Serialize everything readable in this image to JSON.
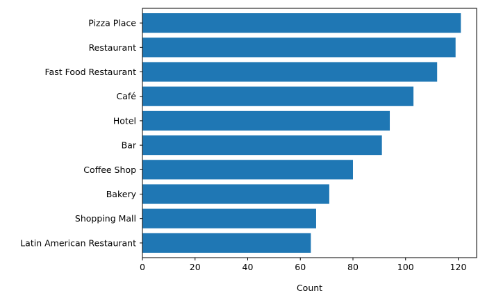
{
  "chart_data": {
    "type": "bar",
    "orientation": "horizontal",
    "categories": [
      "Pizza Place",
      "Restaurant",
      "Fast Food Restaurant",
      "Café",
      "Hotel",
      "Bar",
      "Coffee Shop",
      "Bakery",
      "Shopping Mall",
      "Latin American Restaurant"
    ],
    "values": [
      121,
      119,
      112,
      103,
      94,
      91,
      80,
      71,
      66,
      64
    ],
    "title": "",
    "xlabel": "Count",
    "ylabel": "",
    "xlim": [
      0,
      127
    ],
    "xticks": [
      0,
      20,
      40,
      60,
      80,
      100,
      120
    ],
    "grid": false,
    "bar_color": "#1f77b4"
  }
}
